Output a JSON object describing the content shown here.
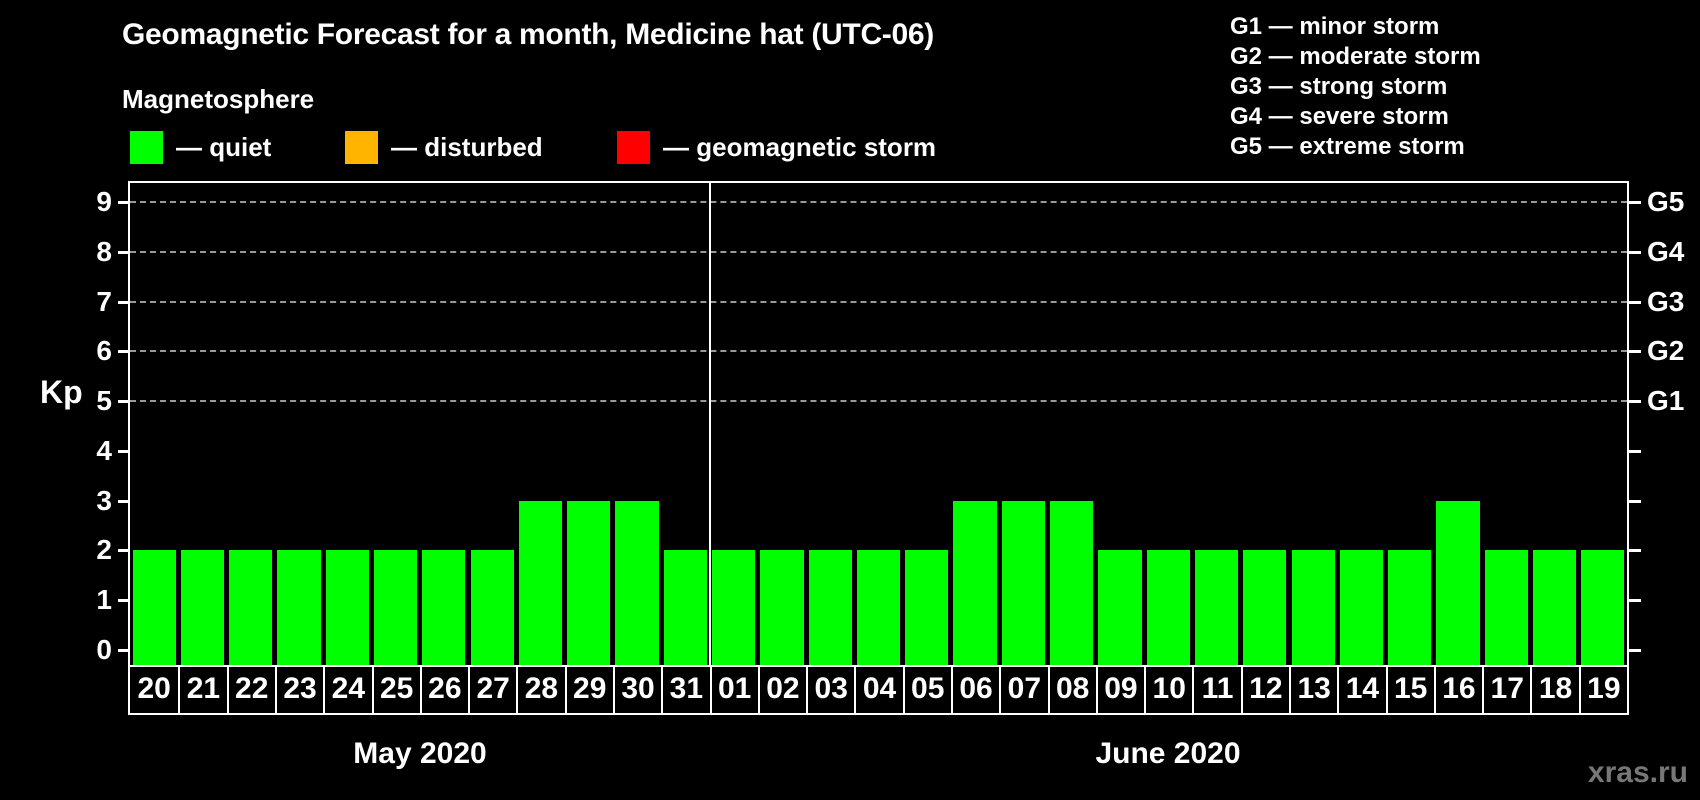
{
  "title": "Geomagnetic Forecast for a month, Medicine hat (UTC-06)",
  "magnetosphere_legend": {
    "heading": "Magnetosphere",
    "items": [
      {
        "label": "— quiet",
        "color": "#00ff00"
      },
      {
        "label": "— disturbed",
        "color": "#ffb400"
      },
      {
        "label": "— geomagnetic storm",
        "color": "#ff0000"
      }
    ]
  },
  "g_scale_legend": {
    "items": [
      "G1 — minor storm",
      "G2 — moderate storm",
      "G3 — strong storm",
      "G4 — severe storm",
      "G5 — extreme storm"
    ]
  },
  "watermark": "xras.ru",
  "colors": {
    "quiet": "#00ff00",
    "disturbed": "#ffb400",
    "storm": "#ff0000",
    "axis": "#ffffff",
    "grid": "#999999",
    "background": "#000000",
    "watermark": "#777777"
  },
  "chart_data": {
    "type": "bar",
    "ylabel": "Kp",
    "ylim": [
      0,
      9
    ],
    "y_ticks": [
      0,
      1,
      2,
      3,
      4,
      5,
      6,
      7,
      8,
      9
    ],
    "gridlines_at_kp": [
      5,
      6,
      7,
      8,
      9
    ],
    "right_axis": [
      {
        "label": "G1",
        "kp": 5
      },
      {
        "label": "G2",
        "kp": 6
      },
      {
        "label": "G3",
        "kp": 7
      },
      {
        "label": "G4",
        "kp": 8
      },
      {
        "label": "G5",
        "kp": 9
      }
    ],
    "months": [
      {
        "label": "May 2020",
        "bars": [
          {
            "day": "20",
            "kp": 2,
            "status": "quiet"
          },
          {
            "day": "21",
            "kp": 2,
            "status": "quiet"
          },
          {
            "day": "22",
            "kp": 2,
            "status": "quiet"
          },
          {
            "day": "23",
            "kp": 2,
            "status": "quiet"
          },
          {
            "day": "24",
            "kp": 2,
            "status": "quiet"
          },
          {
            "day": "25",
            "kp": 2,
            "status": "quiet"
          },
          {
            "day": "26",
            "kp": 2,
            "status": "quiet"
          },
          {
            "day": "27",
            "kp": 2,
            "status": "quiet"
          },
          {
            "day": "28",
            "kp": 3,
            "status": "quiet"
          },
          {
            "day": "29",
            "kp": 3,
            "status": "quiet"
          },
          {
            "day": "30",
            "kp": 3,
            "status": "quiet"
          },
          {
            "day": "31",
            "kp": 2,
            "status": "quiet"
          }
        ]
      },
      {
        "label": "June 2020",
        "bars": [
          {
            "day": "01",
            "kp": 2,
            "status": "quiet"
          },
          {
            "day": "02",
            "kp": 2,
            "status": "quiet"
          },
          {
            "day": "03",
            "kp": 2,
            "status": "quiet"
          },
          {
            "day": "04",
            "kp": 2,
            "status": "quiet"
          },
          {
            "day": "05",
            "kp": 2,
            "status": "quiet"
          },
          {
            "day": "06",
            "kp": 3,
            "status": "quiet"
          },
          {
            "day": "07",
            "kp": 3,
            "status": "quiet"
          },
          {
            "day": "08",
            "kp": 3,
            "status": "quiet"
          },
          {
            "day": "09",
            "kp": 2,
            "status": "quiet"
          },
          {
            "day": "10",
            "kp": 2,
            "status": "quiet"
          },
          {
            "day": "11",
            "kp": 2,
            "status": "quiet"
          },
          {
            "day": "12",
            "kp": 2,
            "status": "quiet"
          },
          {
            "day": "13",
            "kp": 2,
            "status": "quiet"
          },
          {
            "day": "14",
            "kp": 2,
            "status": "quiet"
          },
          {
            "day": "15",
            "kp": 2,
            "status": "quiet"
          },
          {
            "day": "16",
            "kp": 3,
            "status": "quiet"
          },
          {
            "day": "17",
            "kp": 2,
            "status": "quiet"
          },
          {
            "day": "18",
            "kp": 2,
            "status": "quiet"
          },
          {
            "day": "19",
            "kp": 2,
            "status": "quiet"
          }
        ]
      }
    ]
  }
}
